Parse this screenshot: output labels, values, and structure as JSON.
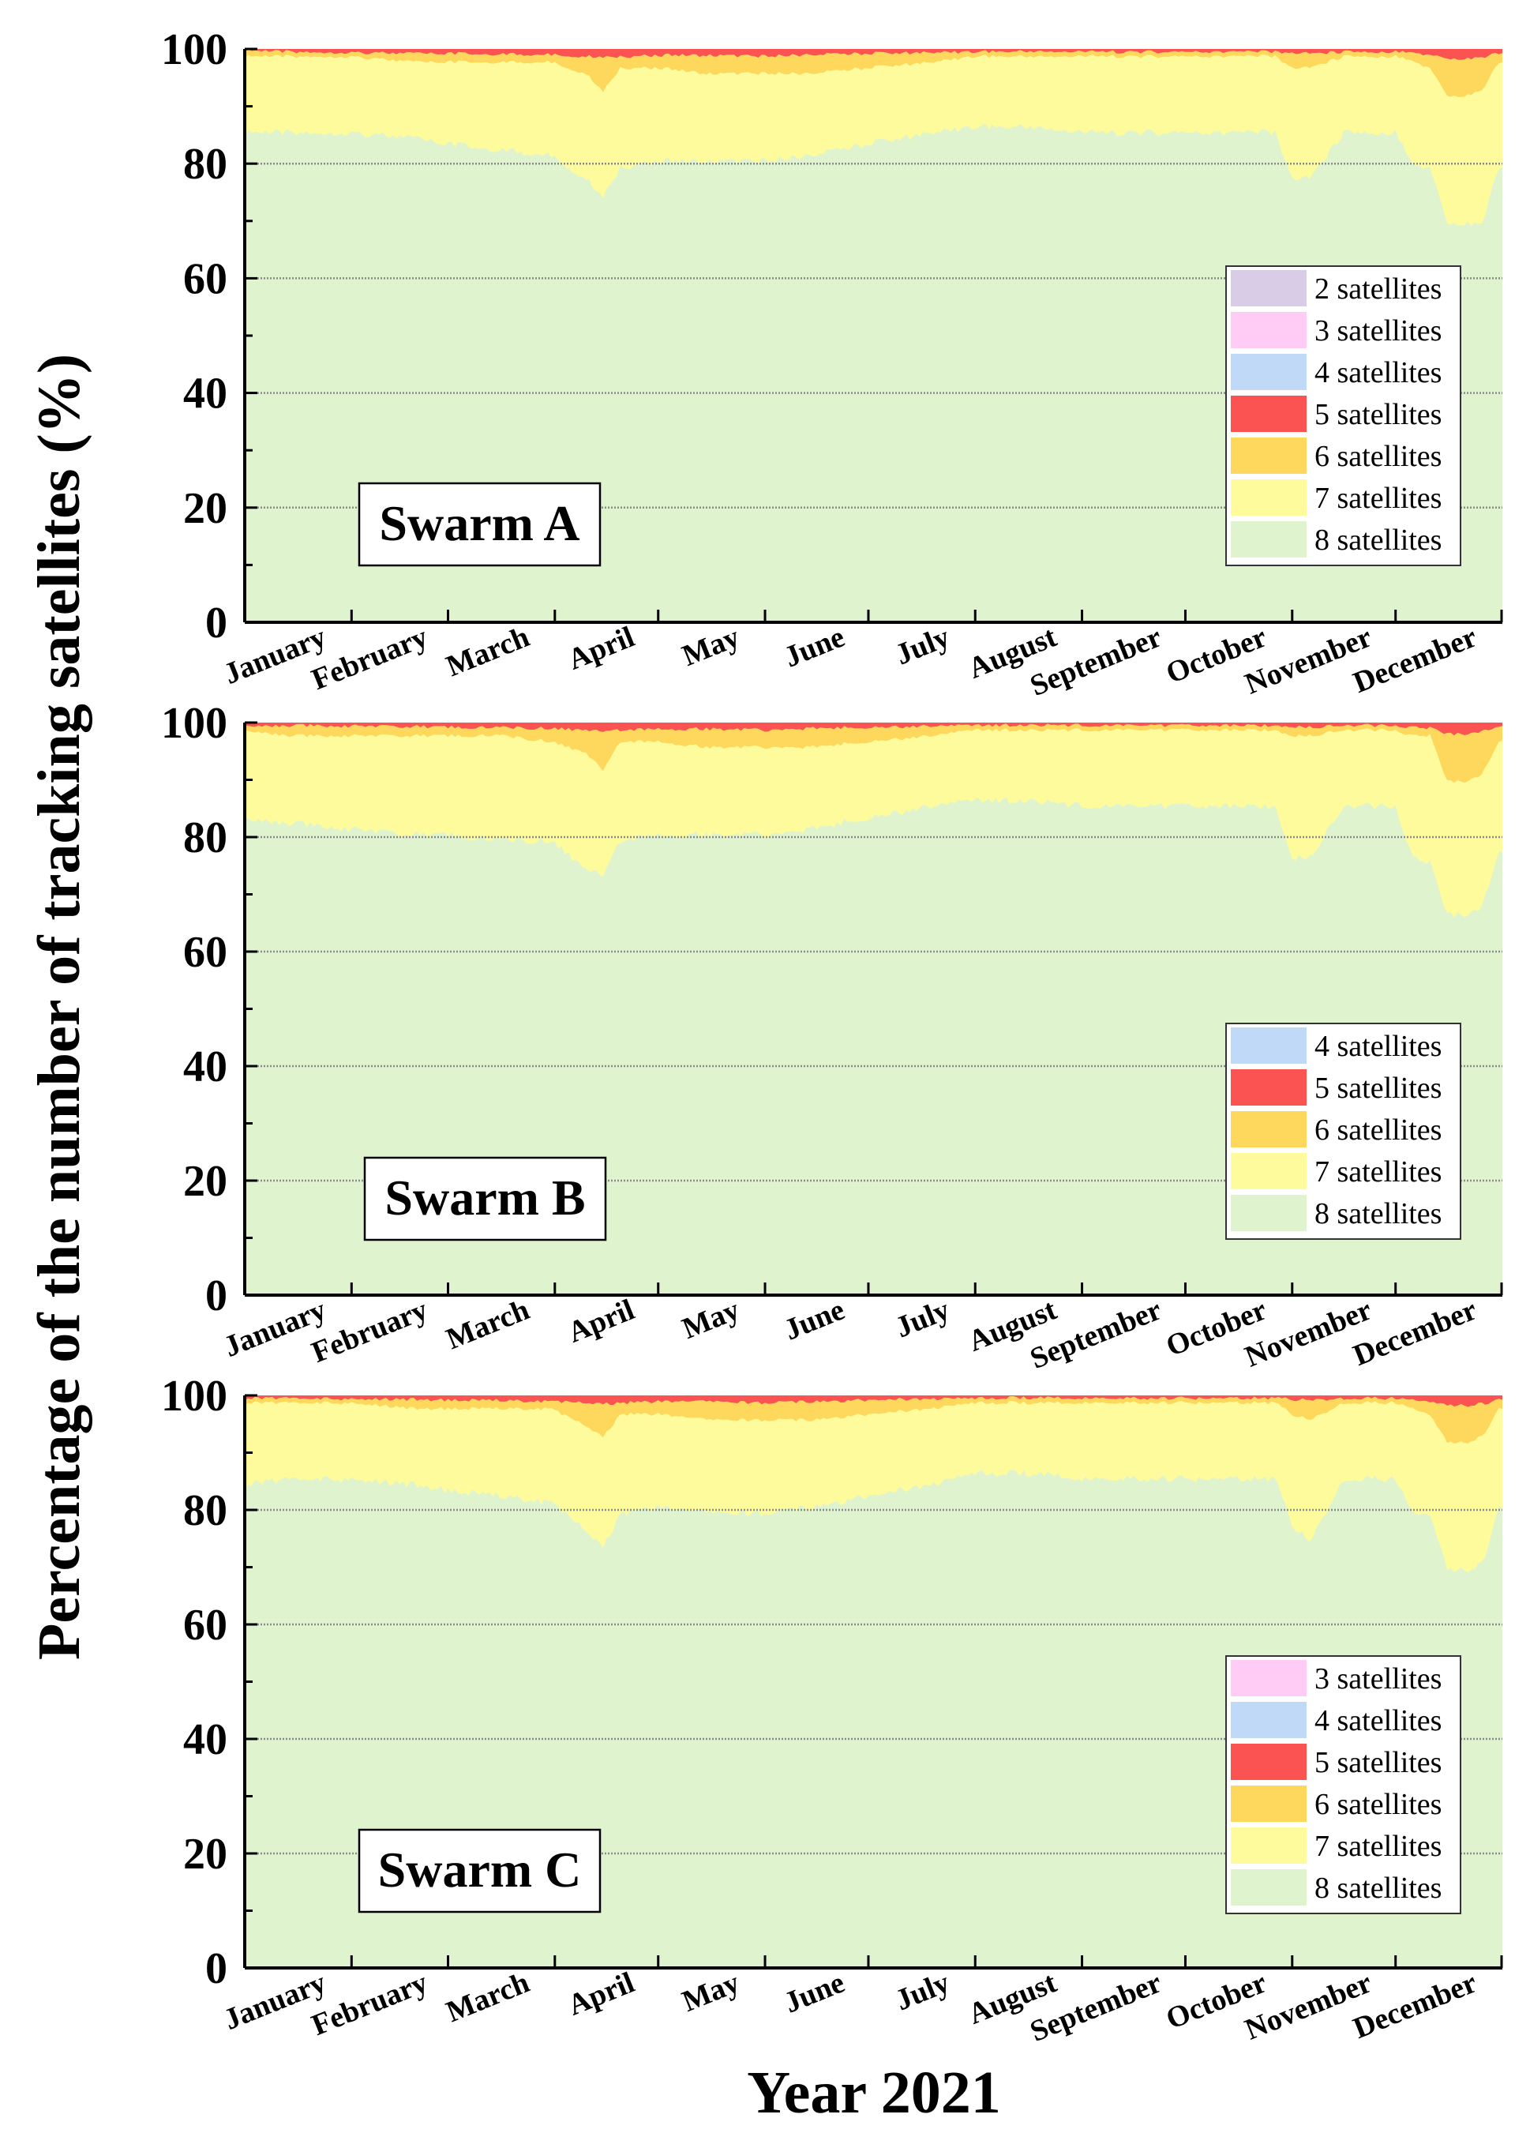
{
  "chart_data": {
    "type": "area",
    "ylabel": "Percentage of the number of tracking satellites (%)",
    "xlabel": "Year 2021",
    "ylim": [
      0,
      100
    ],
    "yticks": [
      "0",
      "20",
      "40",
      "60",
      "80",
      "100"
    ],
    "months": [
      "January",
      "February",
      "March",
      "April",
      "May",
      "June",
      "July",
      "August",
      "September",
      "October",
      "November",
      "December"
    ],
    "x_axis": "day of year (1-365)",
    "category_colors": {
      "2 satellites": "#d9cce6",
      "3 satellites": "#ffccf5",
      "4 satellites": "#bfd9f7",
      "5 satellites": "#fb5252",
      "6 satellites": "#fdd85d",
      "7 satellites": "#fdfb9b",
      "8 satellites": "#e0f3cf"
    },
    "panels": [
      {
        "name": "Swarm A",
        "legend": [
          "2 satellites",
          "3 satellites",
          "4 satellites",
          "5 satellites",
          "6 satellites",
          "7 satellites",
          "8 satellites"
        ],
        "series_note": "cumulative upper boundaries (%) at sampled days; remainder up to 100 is minor categories",
        "days": [
          1,
          15,
          32,
          50,
          60,
          75,
          90,
          100,
          105,
          110,
          121,
          135,
          152,
          165,
          182,
          200,
          213,
          230,
          244,
          260,
          274,
          290,
          300,
          305,
          310,
          320,
          335,
          340,
          345,
          350,
          355,
          360,
          365
        ],
        "boundaries": {
          "8 satellites": [
            86,
            86,
            86,
            85,
            84,
            83,
            82,
            78,
            75,
            80,
            81,
            81,
            81,
            82,
            84,
            86,
            87,
            87,
            86,
            86,
            86,
            86,
            86,
            78,
            78,
            86,
            86,
            80,
            80,
            70,
            70,
            70,
            80
          ],
          "7 satellites": [
            99,
            99,
            99,
            98,
            98,
            98,
            98,
            96,
            93,
            97,
            97,
            96,
            96,
            96,
            97,
            98,
            99,
            99,
            99,
            99,
            99,
            99,
            99,
            97,
            97,
            99,
            99,
            98,
            97,
            92,
            92,
            93,
            98
          ],
          "6 satellites": [
            100,
            99.8,
            99.7,
            99.5,
            99.5,
            99.4,
            99.3,
            99,
            99,
            99,
            99.2,
            99.2,
            99,
            99.3,
            99.5,
            99.7,
            99.8,
            99.9,
            99.8,
            99.8,
            99.8,
            99.8,
            99.8,
            99.6,
            99.5,
            99.8,
            99.8,
            99.5,
            99.3,
            98.5,
            98.5,
            98.8,
            99.6
          ]
        }
      },
      {
        "name": "Swarm B",
        "legend": [
          "4 satellites",
          "5 satellites",
          "6 satellites",
          "7 satellites",
          "8 satellites"
        ],
        "series_note": "cumulative upper boundaries (%) at sampled days; remainder up to 100 is minor categories",
        "days": [
          1,
          15,
          32,
          50,
          60,
          75,
          90,
          100,
          105,
          110,
          121,
          135,
          152,
          165,
          182,
          200,
          213,
          230,
          244,
          260,
          274,
          290,
          300,
          305,
          310,
          320,
          335,
          340,
          345,
          350,
          355,
          360,
          365
        ],
        "boundaries": {
          "8 satellites": [
            84,
            83,
            82,
            81,
            81,
            80,
            80,
            75,
            74,
            80,
            81,
            81,
            81,
            82,
            84,
            86,
            87,
            87,
            86,
            86,
            86,
            86,
            86,
            77,
            77,
            86,
            86,
            77,
            76,
            67,
            67,
            68,
            78
          ],
          "7 satellites": [
            99,
            98,
            98,
            98,
            98,
            98,
            97,
            95,
            92,
            97,
            97,
            96,
            96,
            96,
            97,
            98,
            99,
            99,
            99,
            99,
            99,
            99,
            99,
            98,
            98,
            99,
            99,
            98,
            98,
            90,
            90,
            91,
            97
          ],
          "6 satellites": [
            99.8,
            99.8,
            99.7,
            99.6,
            99.5,
            99.4,
            99.3,
            99,
            98.8,
            99,
            99.2,
            99.2,
            99,
            99.3,
            99.5,
            99.7,
            99.8,
            99.9,
            99.8,
            99.8,
            99.8,
            99.8,
            99.8,
            99.6,
            99.5,
            99.8,
            99.8,
            99.5,
            99.3,
            98.3,
            98.3,
            98.6,
            99.6
          ]
        }
      },
      {
        "name": "Swarm C",
        "legend": [
          "3 satellites",
          "4 satellites",
          "5 satellites",
          "6 satellites",
          "7 satellites",
          "8 satellites"
        ],
        "series_note": "cumulative upper boundaries (%) at sampled days; remainder up to 100 is minor categories",
        "days": [
          1,
          15,
          32,
          50,
          60,
          75,
          90,
          100,
          105,
          110,
          121,
          135,
          152,
          165,
          182,
          200,
          213,
          230,
          244,
          260,
          274,
          290,
          300,
          305,
          310,
          320,
          335,
          340,
          345,
          350,
          355,
          360,
          365
        ],
        "boundaries": {
          "8 satellites": [
            85,
            86,
            86,
            85,
            84,
            83,
            82,
            77,
            74,
            80,
            81,
            80,
            80,
            81,
            83,
            85,
            87,
            87,
            86,
            86,
            86,
            86,
            86,
            78,
            75,
            86,
            86,
            80,
            80,
            70,
            70,
            71,
            81
          ],
          "7 satellites": [
            99,
            99,
            99,
            98,
            98,
            98,
            98,
            95,
            93,
            97,
            97,
            96,
            96,
            96,
            97,
            98,
            99,
            99,
            99,
            99,
            99,
            99,
            99,
            97,
            96,
            99,
            99,
            98,
            97,
            92,
            92,
            93,
            98
          ],
          "6 satellites": [
            99.8,
            99.8,
            99.7,
            99.6,
            99.5,
            99.4,
            99.3,
            99,
            98.8,
            99,
            99.2,
            99.2,
            99,
            99.2,
            99.5,
            99.7,
            99.8,
            99.9,
            99.8,
            99.8,
            99.8,
            99.8,
            99.8,
            99.6,
            99.5,
            99.8,
            99.8,
            99.5,
            99.3,
            98.5,
            98.5,
            98.8,
            99.6
          ]
        }
      }
    ]
  }
}
